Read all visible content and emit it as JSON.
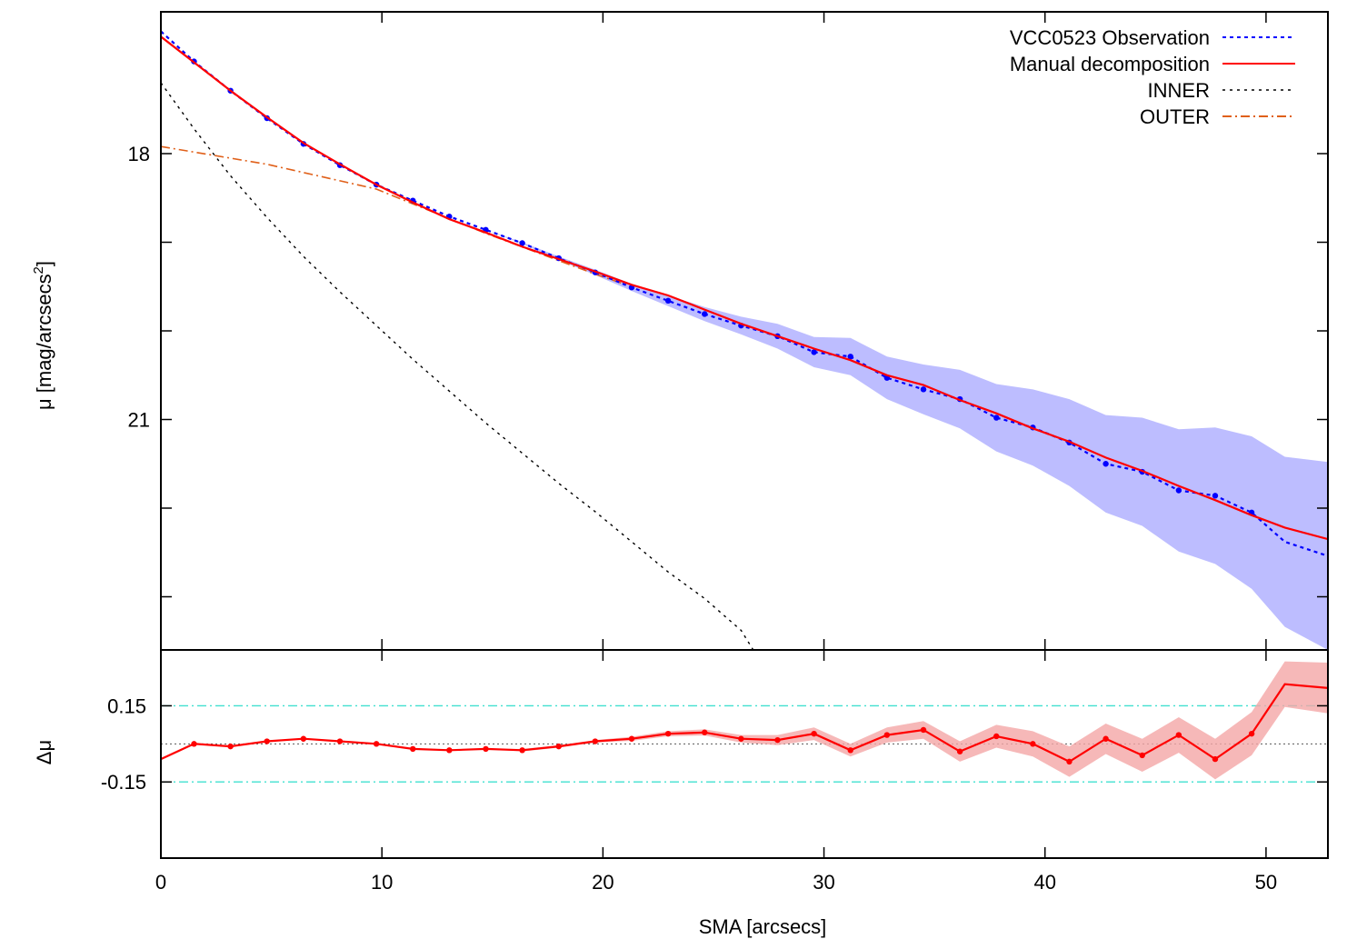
{
  "chart_data": [
    {
      "type": "line",
      "title": "",
      "xlabel": "",
      "ylabel": "μ [mag/arcsecs²]",
      "ylabel_parts": {
        "main": "μ [mag/arcsecs",
        "sup": "2",
        "end": "]"
      },
      "xlim": [
        0,
        52.8
      ],
      "ylim": [
        16.4,
        23.6
      ],
      "y_inverted": true,
      "yticks": [
        18,
        19,
        20,
        21,
        22,
        23
      ],
      "ytick_labels": [
        {
          "value": 18,
          "label": "18"
        },
        {
          "value": 21,
          "label": "21"
        }
      ],
      "grid": false,
      "legend_position": "top-right",
      "legend": [
        "VCC0523 Observation",
        "Manual decomposition",
        "INNER",
        "OUTER"
      ],
      "series": [
        {
          "name": "VCC0523 Observation",
          "style": "dotted-with-points",
          "color": "#0000ff",
          "band_color": "#9999ff",
          "x": [
            0,
            1.5,
            3.15,
            4.8,
            6.45,
            8.1,
            9.75,
            11.4,
            13.05,
            14.7,
            16.35,
            18.0,
            19.65,
            21.3,
            22.95,
            24.6,
            26.25,
            27.9,
            29.55,
            31.2,
            32.85,
            34.5,
            36.15,
            37.8,
            39.45,
            41.1,
            42.75,
            44.4,
            46.05,
            47.7,
            49.35,
            50.85,
            52.8
          ],
          "y": [
            16.62,
            16.96,
            17.29,
            17.6,
            17.89,
            18.13,
            18.35,
            18.53,
            18.71,
            18.86,
            19.01,
            19.18,
            19.34,
            19.51,
            19.66,
            19.81,
            19.94,
            20.06,
            20.24,
            20.29,
            20.53,
            20.66,
            20.77,
            20.98,
            21.09,
            21.26,
            21.5,
            21.59,
            21.8,
            21.86,
            22.05,
            22.38,
            22.54
          ],
          "band_lower": [
            16.62,
            16.96,
            17.29,
            17.6,
            17.89,
            18.13,
            18.35,
            18.53,
            18.71,
            18.86,
            19.0,
            19.16,
            19.31,
            19.47,
            19.6,
            19.73,
            19.84,
            19.92,
            20.07,
            20.08,
            20.29,
            20.38,
            20.44,
            20.6,
            20.66,
            20.77,
            20.95,
            20.98,
            21.11,
            21.09,
            21.19,
            21.42,
            21.48
          ],
          "band_upper": [
            16.62,
            16.96,
            17.29,
            17.6,
            17.89,
            18.13,
            18.35,
            18.53,
            18.71,
            18.86,
            19.02,
            19.2,
            19.37,
            19.55,
            19.72,
            19.89,
            20.04,
            20.2,
            20.41,
            20.5,
            20.77,
            20.94,
            21.1,
            21.36,
            21.52,
            21.75,
            22.05,
            22.2,
            22.49,
            22.63,
            22.91,
            23.34,
            23.6
          ]
        },
        {
          "name": "Manual decomposition",
          "style": "solid",
          "color": "#ff0000",
          "x": [
            0,
            1.5,
            3.15,
            4.8,
            6.45,
            8.1,
            9.75,
            11.4,
            13.05,
            14.7,
            16.35,
            18.0,
            19.65,
            21.3,
            22.95,
            24.6,
            26.25,
            27.9,
            29.55,
            31.2,
            32.85,
            34.5,
            36.15,
            37.8,
            39.45,
            41.1,
            42.75,
            44.4,
            46.05,
            47.7,
            49.35,
            50.85,
            52.8
          ],
          "y": [
            16.68,
            16.97,
            17.29,
            17.59,
            17.88,
            18.12,
            18.35,
            18.55,
            18.74,
            18.89,
            19.05,
            19.19,
            19.33,
            19.48,
            19.6,
            19.76,
            19.92,
            20.06,
            20.2,
            20.33,
            20.5,
            20.61,
            20.78,
            20.93,
            21.1,
            21.25,
            21.43,
            21.58,
            21.75,
            21.91,
            22.08,
            22.22,
            22.35
          ]
        },
        {
          "name": "INNER",
          "style": "dotted",
          "color": "#000000",
          "x": [
            0,
            1.5,
            3.15,
            4.8,
            6.45,
            8.1,
            9.75,
            11.4,
            13.05,
            14.7,
            16.35,
            18.0,
            19.65,
            21.3,
            22.95,
            24.6,
            26.25,
            26.8
          ],
          "y": [
            17.2,
            17.72,
            18.25,
            18.72,
            19.16,
            19.56,
            19.94,
            20.32,
            20.68,
            21.04,
            21.38,
            21.72,
            22.04,
            22.38,
            22.72,
            23.02,
            23.38,
            23.6
          ]
        },
        {
          "name": "OUTER",
          "style": "dash-dot",
          "color": "#e0601a",
          "x": [
            0,
            4.8,
            9.75,
            14.7,
            19.65,
            21.3
          ],
          "y": [
            17.92,
            18.12,
            18.4,
            18.9,
            19.36,
            19.5
          ]
        }
      ]
    },
    {
      "type": "line",
      "title": "",
      "xlabel": "SMA [arcsecs]",
      "ylabel": "Δμ",
      "xlim": [
        0,
        52.8
      ],
      "ylim": [
        -0.45,
        0.37
      ],
      "y_inverted": true,
      "xticks": [
        0,
        10,
        20,
        30,
        40,
        50
      ],
      "xtick_labels": [
        "0",
        "10",
        "20",
        "30",
        "40",
        "50"
      ],
      "yticks": [
        0.15,
        -0.15
      ],
      "ytick_labels": [
        "0.15",
        "-0.15"
      ],
      "reference_lines": [
        {
          "y": 0.15,
          "style": "dash-dot",
          "color": "#40e0d0"
        },
        {
          "y": -0.15,
          "style": "dash-dot",
          "color": "#40e0d0"
        },
        {
          "y": 0,
          "style": "dotted",
          "color": "#555555"
        }
      ],
      "series": [
        {
          "name": "",
          "style": "solid-with-points",
          "color": "#ff0000",
          "band_color": "#f4a6a6",
          "x": [
            0,
            1.5,
            3.15,
            4.8,
            6.45,
            8.1,
            9.75,
            11.4,
            13.05,
            14.7,
            16.35,
            18.0,
            19.65,
            21.3,
            22.95,
            24.6,
            26.25,
            27.9,
            29.55,
            31.2,
            32.85,
            34.5,
            36.15,
            37.8,
            39.45,
            41.1,
            42.75,
            44.4,
            46.05,
            47.7,
            49.35,
            50.85,
            52.8
          ],
          "y": [
            -0.06,
            0.0,
            -0.01,
            0.01,
            0.02,
            0.01,
            0.0,
            -0.02,
            -0.025,
            -0.02,
            -0.025,
            -0.01,
            0.01,
            0.02,
            0.04,
            0.045,
            0.02,
            0.015,
            0.04,
            -0.025,
            0.035,
            0.055,
            -0.03,
            0.03,
            0.0,
            -0.07,
            0.02,
            -0.045,
            0.035,
            -0.06,
            0.04,
            0.235,
            0.22
          ],
          "band_lower": [
            -0.06,
            0.0,
            -0.01,
            0.01,
            0.02,
            0.01,
            0.0,
            -0.02,
            -0.025,
            -0.02,
            -0.03,
            -0.015,
            0.005,
            0.012,
            0.03,
            0.033,
            0.005,
            -0.005,
            0.015,
            -0.05,
            0.005,
            0.02,
            -0.07,
            -0.015,
            -0.05,
            -0.13,
            -0.04,
            -0.11,
            -0.035,
            -0.14,
            -0.045,
            0.145,
            0.12
          ],
          "band_upper": [
            -0.06,
            0.0,
            -0.01,
            0.01,
            0.02,
            0.01,
            0.0,
            -0.02,
            -0.025,
            -0.02,
            -0.02,
            -0.005,
            0.015,
            0.028,
            0.05,
            0.057,
            0.035,
            0.035,
            0.065,
            0.0,
            0.065,
            0.09,
            0.01,
            0.075,
            0.05,
            -0.01,
            0.08,
            0.02,
            0.105,
            0.02,
            0.125,
            0.325,
            0.32
          ]
        }
      ]
    }
  ]
}
